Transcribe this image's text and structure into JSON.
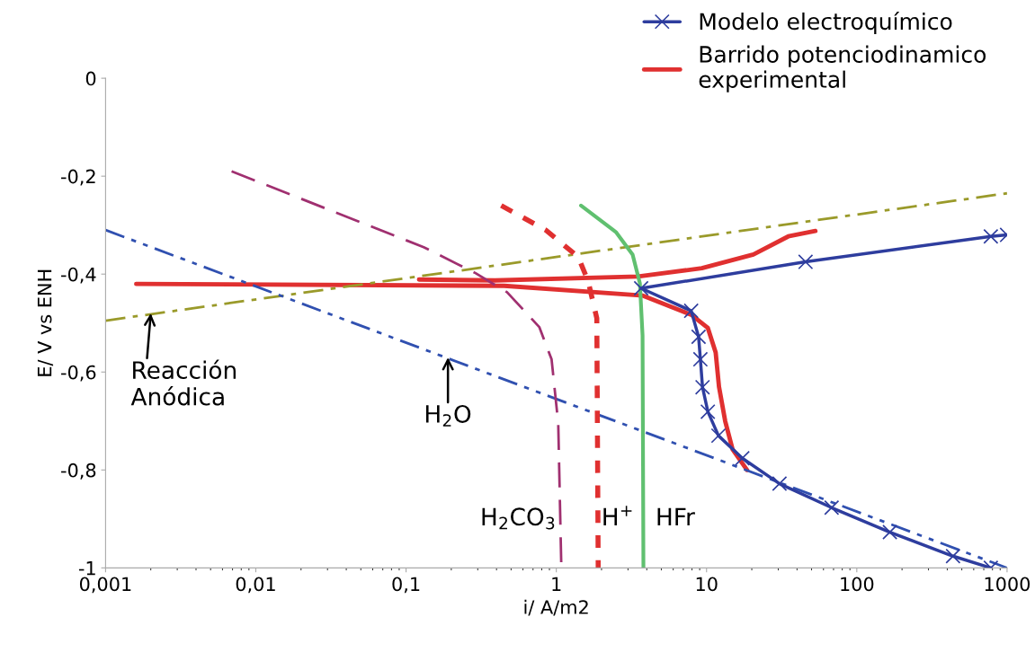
{
  "chart_data": {
    "type": "line",
    "xlabel": "i/ A/m2",
    "ylabel": "E/ V vs ENH",
    "log": "x",
    "grid": false,
    "legend": "top right",
    "xlim": [
      0.001,
      1000
    ],
    "xticks": [
      {
        "value": 0.001,
        "label": "0,001"
      },
      {
        "value": 0.01,
        "label": "0,01"
      },
      {
        "value": 0.1,
        "label": "0,1"
      },
      1,
      10,
      100,
      1000
    ],
    "ylim": [
      -1,
      0
    ],
    "yticks": [
      {
        "value": -1,
        "label": "-1"
      },
      {
        "value": -0.8,
        "label": "-0,8"
      },
      {
        "value": -0.6,
        "label": "-0,6"
      },
      {
        "value": -0.4,
        "label": "-0,4"
      },
      {
        "value": -0.2,
        "label": "-0,2"
      },
      0
    ],
    "series": [
      {
        "name": "Modelo electroquímico",
        "color": "#2e3d9e",
        "marker": "cross",
        "line_style": "solid",
        "x": [
          1000,
          780,
          45.6,
          3.67,
          7.9,
          8.85,
          9.1,
          9.4,
          10.2,
          12.0,
          17.3,
          30.6,
          68,
          166,
          437,
          780
        ],
        "values": [
          -0.32,
          -0.323,
          -0.375,
          -0.429,
          -0.475,
          -0.528,
          -0.574,
          -0.631,
          -0.681,
          -0.73,
          -0.776,
          -0.828,
          -0.877,
          -0.927,
          -0.976,
          -1.0
        ]
      },
      {
        "name": "Barrido potenciodinamico experimental",
        "color": "#e03030",
        "marker": "none",
        "line_style": "solid",
        "x": [
          0.0016,
          0.45,
          3.77,
          7.9,
          10.2,
          11.5,
          12.1,
          13.3,
          14.9,
          18.6,
          null,
          0.122,
          0.39,
          3.5,
          9.3,
          20.5,
          35,
          53
        ],
        "values": [
          -0.42,
          -0.424,
          -0.444,
          -0.483,
          -0.51,
          -0.56,
          -0.63,
          -0.7,
          -0.758,
          -0.8,
          null,
          -0.411,
          -0.413,
          -0.405,
          -0.388,
          -0.36,
          -0.323,
          -0.312
        ]
      },
      {
        "color": "#9a9a2a",
        "marker": "none",
        "line_style": "dashdot",
        "x": [
          0.001,
          1000
        ],
        "values": [
          -0.495,
          -0.235
        ]
      },
      {
        "color": "#3050b0",
        "marker": "none",
        "line_style": "dashdotdot",
        "x": [
          0.001,
          1000
        ],
        "values": [
          -0.31,
          -1.0
        ]
      },
      {
        "color": "#a03070",
        "marker": "none",
        "line_style": "dashed",
        "x": [
          0.0069,
          0.131,
          0.29,
          0.47,
          0.77,
          0.93,
          1.03,
          1.08
        ],
        "values": [
          -0.19,
          -0.345,
          -0.398,
          -0.437,
          -0.508,
          -0.574,
          -0.705,
          -1.0
        ]
      },
      {
        "color": "#e03030",
        "marker": "none",
        "line_style": "dotted",
        "x": [
          0.43,
          0.85,
          1.4,
          1.63,
          1.86,
          1.9
        ],
        "values": [
          -0.26,
          -0.31,
          -0.365,
          -0.415,
          -0.49,
          -1.0
        ]
      },
      {
        "color": "#60c070",
        "marker": "none",
        "line_style": "solid",
        "x": [
          1.46,
          2.49,
          3.22,
          3.6,
          3.75,
          3.8
        ],
        "values": [
          -0.26,
          -0.314,
          -0.36,
          -0.419,
          -0.525,
          -1.0
        ]
      }
    ],
    "annotations": [
      {
        "text": "Reacción\nAnódica",
        "x": 0.002,
        "y": -0.48
      },
      {
        "text": "H$_{2}$O",
        "x": 0.19,
        "y": -0.57
      },
      "H$_{2}$CO$_{3}$",
      "H$^{+}$",
      "HFr"
    ]
  }
}
